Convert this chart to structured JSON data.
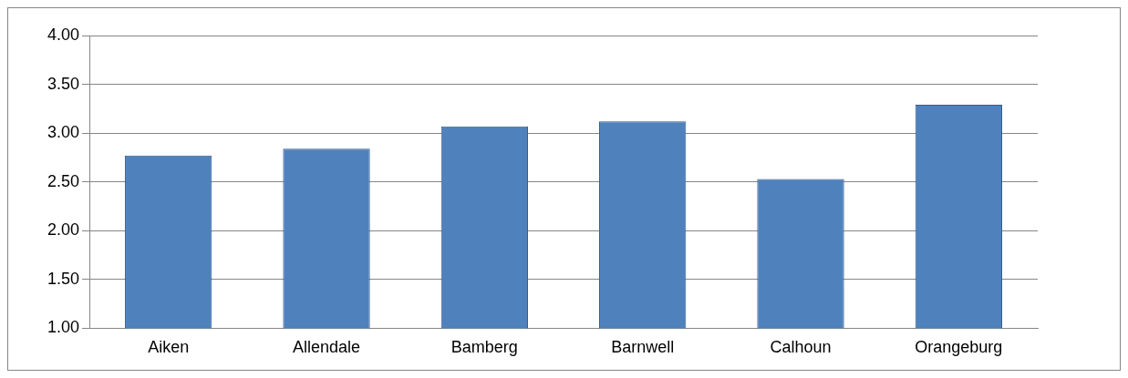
{
  "chart_data": {
    "type": "bar",
    "categories": [
      "Aiken",
      "Allendale",
      "Bamberg",
      "Barnwell",
      "Calhoun",
      "Orangeburg"
    ],
    "values": [
      2.77,
      2.84,
      3.07,
      3.12,
      2.53,
      3.29
    ],
    "color": "#4f81bd",
    "ylim": [
      1,
      4
    ],
    "yticks": [
      {
        "value": 1,
        "label": "1.00"
      },
      {
        "value": 1.5,
        "label": "1.50"
      },
      {
        "value": 2,
        "label": "2.00"
      },
      {
        "value": 2.5,
        "label": "2.50"
      },
      {
        "value": 3,
        "label": "3.00"
      },
      {
        "value": 3.5,
        "label": "3.50"
      },
      {
        "value": 4,
        "label": "4.00"
      }
    ],
    "grid": "y",
    "legend": false
  }
}
